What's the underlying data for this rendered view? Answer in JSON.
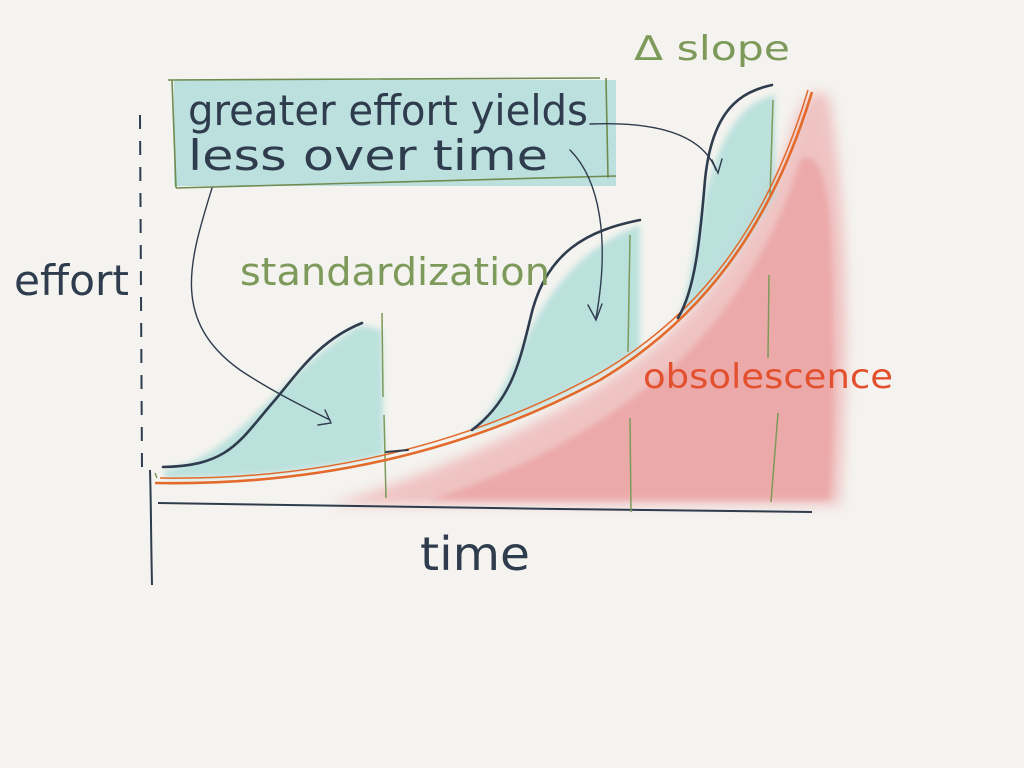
{
  "labels": {
    "effort": "effort",
    "time": "time",
    "callout": [
      "greater effort yields",
      "less over time"
    ],
    "standardization": "standardization",
    "slope": "Δ slope",
    "obsolescence": "obsolescence"
  },
  "colors": {
    "background": "#f4f3ef",
    "ink": "#2f3c4e",
    "teal_fill": "#a9dbd8",
    "callout_fill": "#b5dedb",
    "callout_border": "#6f8b4f",
    "red_wash": "#e98a8d",
    "orange_line": "#e36a2b",
    "green_ink": "#7d9a5a",
    "red_text": "#e3502d"
  }
}
